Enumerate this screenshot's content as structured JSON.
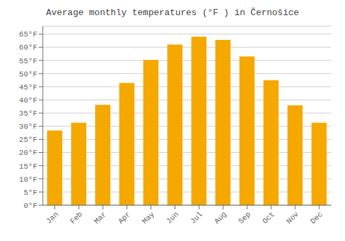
{
  "chart_data": {
    "type": "bar",
    "title": "Average monthly temperatures (°F ) in Černošice",
    "categories": [
      "Jan",
      "Feb",
      "Mar",
      "Apr",
      "May",
      "Jun",
      "Jul",
      "Aug",
      "Sep",
      "Oct",
      "Nov",
      "Dec"
    ],
    "values": [
      28.4,
      31.3,
      38.1,
      46.4,
      55.2,
      61.0,
      64.0,
      62.8,
      56.5,
      47.5,
      37.9,
      31.3
    ],
    "color": "#F5A800",
    "ylim": [
      0,
      68
    ],
    "yticks": [
      {
        "value": 0,
        "label": "0°F"
      },
      {
        "value": 5,
        "label": "5°F"
      },
      {
        "value": 10,
        "label": "10°F"
      },
      {
        "value": 15,
        "label": "15°F"
      },
      {
        "value": 20,
        "label": "20°F"
      },
      {
        "value": 25,
        "label": "25°F"
      },
      {
        "value": 30,
        "label": "30°F"
      },
      {
        "value": 35,
        "label": "35°F"
      },
      {
        "value": 40,
        "label": "40°F"
      },
      {
        "value": 45,
        "label": "45°F"
      },
      {
        "value": 50,
        "label": "50°F"
      },
      {
        "value": 55,
        "label": "55°F"
      },
      {
        "value": 60,
        "label": "60°F"
      },
      {
        "value": 65,
        "label": "65°F"
      }
    ],
    "grid": true
  }
}
